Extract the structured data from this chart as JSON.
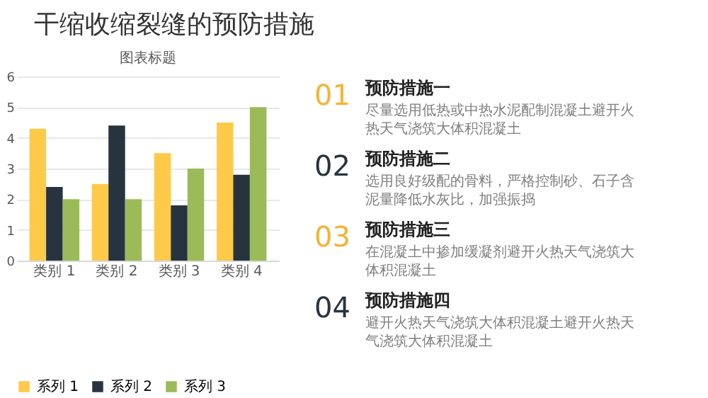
{
  "chart_data": {
    "type": "bar",
    "title": "图表标题",
    "categories": [
      "类别 1",
      "类别 2",
      "类别 3",
      "类别 4"
    ],
    "series": [
      {
        "name": "系列 1",
        "color": "#ffc94a",
        "values": [
          4.3,
          2.5,
          3.5,
          4.5
        ]
      },
      {
        "name": "系列 2",
        "color": "#27343f",
        "values": [
          2.4,
          4.4,
          1.8,
          2.8
        ]
      },
      {
        "name": "系列 3",
        "color": "#9bbb59",
        "values": [
          2,
          2,
          3,
          5
        ]
      }
    ],
    "ylim": [
      0,
      6
    ],
    "yticks": [
      0,
      1,
      2,
      3,
      4,
      5,
      6
    ],
    "grid": "y",
    "legend": "bottom",
    "annotations": [
      "干缩收缩裂缝的预防措施",
      "01",
      "预防措施一",
      "尽量选用低热或中热水泥配制混凝土避开火热天气浇筑大体积混凝土",
      "02",
      "预防措施二",
      "选用良好级配的骨料，严格控制砂、石子含泥量降低水灰比，加强振捣",
      "03",
      "预防措施三",
      "在混凝土中掺加缓凝剂避开火热天气浇筑大体积混凝土",
      "04",
      "预防措施四",
      "避开火热天气浇筑大体积混凝土避开火热天气浇筑大体积混凝土"
    ]
  }
}
